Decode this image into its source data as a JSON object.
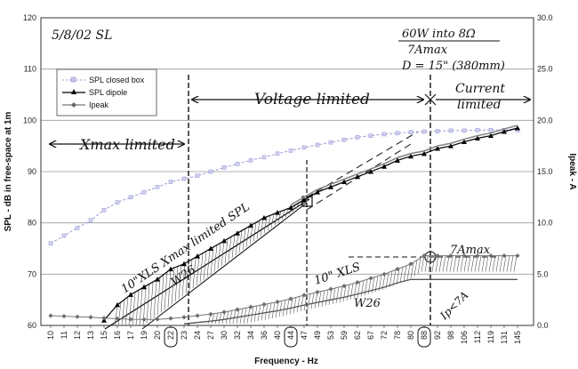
{
  "chart_data": {
    "type": "line",
    "title": "",
    "xlabel": "Frequency - Hz",
    "ylabel": "SPL - dB in free-space at 1m",
    "y2label": "Ipeak - A",
    "ylim": [
      60,
      120
    ],
    "y2lim": [
      0,
      30
    ],
    "yticks": [
      "60",
      "70",
      "80",
      "90",
      "100",
      "110",
      "120"
    ],
    "y2ticks": [
      "0.0",
      "5.0",
      "10.0",
      "15.0",
      "20.0",
      "25.0",
      "30.0"
    ],
    "categories": [
      "10",
      "11",
      "12",
      "13",
      "15",
      "16",
      "17",
      "19",
      "20",
      "22",
      "23",
      "24",
      "27",
      "30",
      "32",
      "34",
      "36",
      "40",
      "44",
      "47",
      "49",
      "53",
      "59",
      "62",
      "67",
      "72",
      "78",
      "80",
      "88",
      "92",
      "98",
      "106",
      "112",
      "119",
      "131",
      "145"
    ],
    "circled_ticks": [
      "22",
      "44",
      "88"
    ],
    "grid": true,
    "legend": "top-left",
    "series": [
      {
        "name": "SPL closed box",
        "axis": "left",
        "color": "#9c9cd8",
        "values": [
          76,
          77.5,
          79,
          80.5,
          82.5,
          84,
          85,
          86,
          87,
          88,
          88.6,
          89.2,
          90,
          90.8,
          91.5,
          92.2,
          92.8,
          93.5,
          94.1,
          94.7,
          95.2,
          95.7,
          96.2,
          96.7,
          97,
          97.3,
          97.5,
          97.7,
          97.8,
          97.9,
          98,
          98,
          98.1,
          98.1,
          98.1,
          98.1
        ]
      },
      {
        "name": "SPL dipole",
        "axis": "left",
        "color": "#000000",
        "values": [
          null,
          null,
          null,
          null,
          61,
          64,
          66,
          67.5,
          69,
          71,
          72,
          73.5,
          75,
          76.5,
          78,
          79.5,
          81,
          82,
          83,
          84.5,
          86,
          87,
          88,
          89,
          90,
          91,
          92.2,
          93,
          93.5,
          94.5,
          95,
          95.8,
          96.5,
          97,
          97.8,
          98.5
        ]
      },
      {
        "name": "Ipeak",
        "axis": "right",
        "color": "#777777",
        "values": [
          0.95,
          0.9,
          0.85,
          0.8,
          0.72,
          0.66,
          0.6,
          0.58,
          0.6,
          0.68,
          0.8,
          0.95,
          1.1,
          1.3,
          1.55,
          1.8,
          2.05,
          2.3,
          2.6,
          2.95,
          3.25,
          3.55,
          3.85,
          4.2,
          4.6,
          5.0,
          5.5,
          6.0,
          6.8,
          6.8,
          6.8,
          6.8,
          6.8,
          6.8,
          6.8,
          6.8
        ]
      }
    ],
    "annotations": {
      "date": "5/8/02 SL",
      "spec_line1": "60W into 8Ω",
      "spec_line2": "7Amax",
      "spec_line3": "D = 15\" (380mm)",
      "region_xmax": "Xmax limited",
      "region_voltage": "Voltage limited",
      "region_current_1": "Current",
      "region_current_2": "limited",
      "diag_label": "10\"XLS Xmax limited SPL",
      "w26_upper": "W26",
      "xls_lower": "10\" XLS",
      "w26_lower": "W26",
      "ip_label": "Ip<7A",
      "amax_label": "7Amax"
    }
  }
}
